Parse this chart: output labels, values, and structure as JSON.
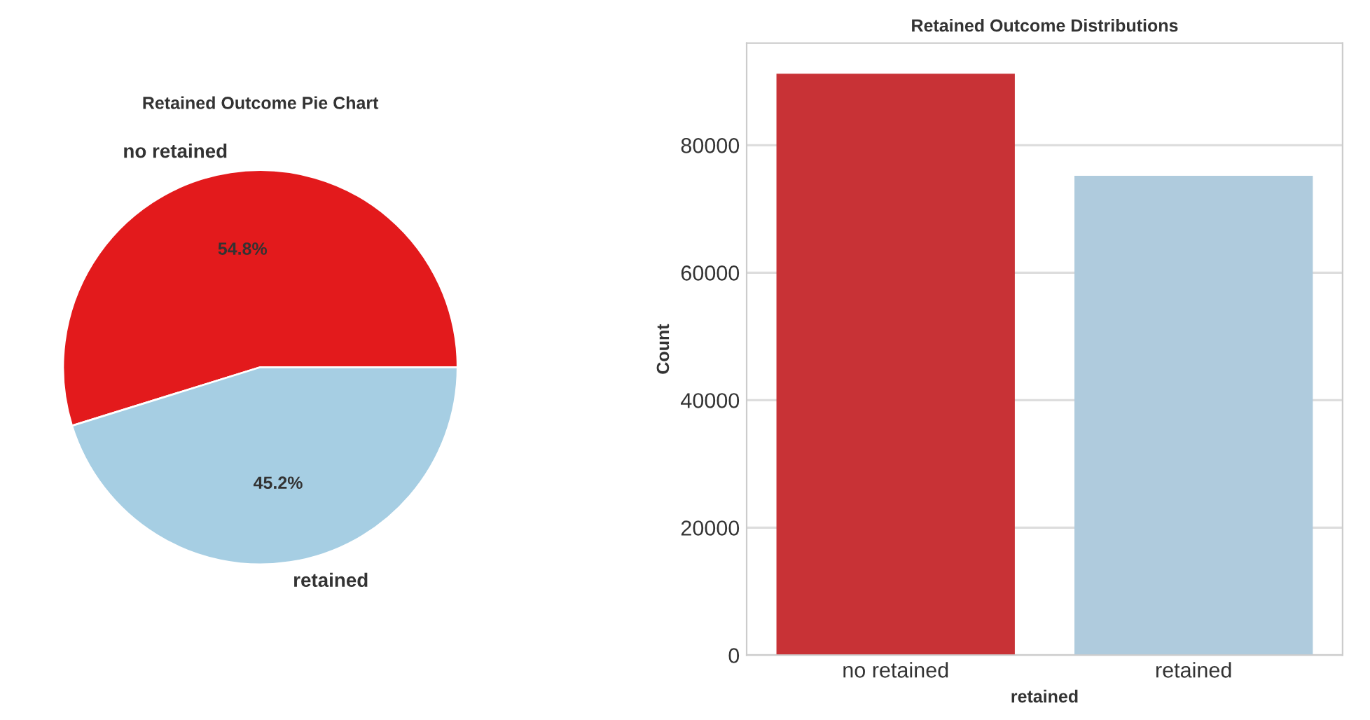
{
  "chart_data": [
    {
      "type": "pie",
      "title": "Retained Outcome Pie Chart",
      "categories": [
        "no retained",
        "retained"
      ],
      "values": [
        54.8,
        45.2
      ],
      "colors": [
        "#e31a1c",
        "#a6cee3"
      ],
      "value_labels": [
        "54.8%",
        "45.2%"
      ]
    },
    {
      "type": "bar",
      "title": "Retained Outcome Distributions",
      "xlabel": "retained",
      "ylabel": "Count",
      "categories": [
        "no retained",
        "retained"
      ],
      "values": [
        91200,
        75200
      ],
      "colors": [
        "#c83236",
        "#afcbdd"
      ],
      "ylim": [
        0,
        96000
      ],
      "yticks": [
        0,
        20000,
        40000,
        60000,
        80000
      ],
      "grid": "y"
    }
  ]
}
